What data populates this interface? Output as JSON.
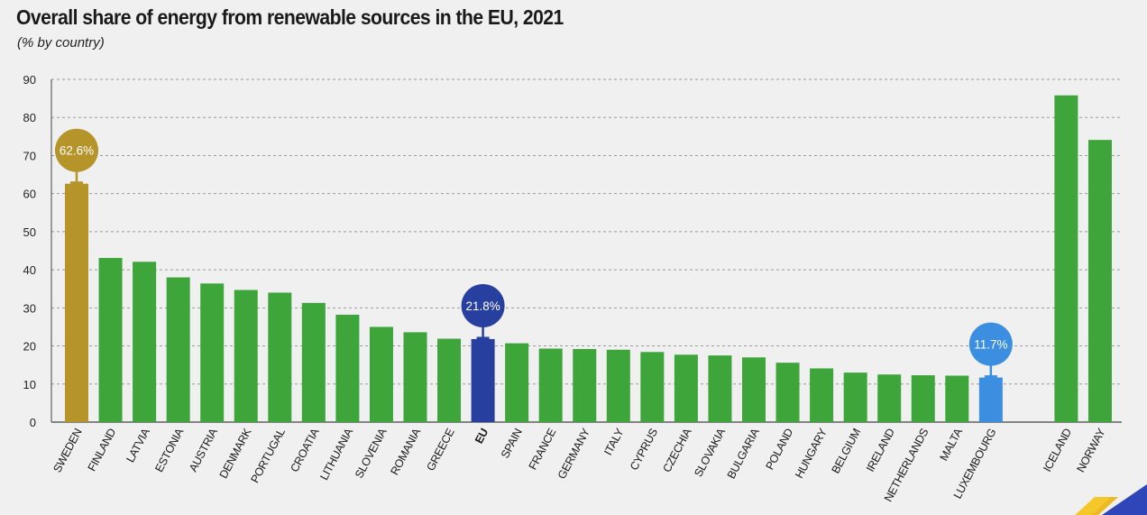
{
  "chart_data": {
    "type": "bar",
    "title": "Overall share of energy from renewable sources in the EU, 2021",
    "subtitle": "(% by country)",
    "ylim": [
      0,
      90
    ],
    "yticks": [
      "0",
      "10",
      "20",
      "30",
      "40",
      "50",
      "60",
      "70",
      "80",
      "90"
    ],
    "grid": true,
    "categories": [
      "SWEDEN",
      "FINLAND",
      "LATVIA",
      "ESTONIA",
      "AUSTRIA",
      "DENMARK",
      "PORTUGAL",
      "CROATIA",
      "LITHUANIA",
      "SLOVENIA",
      "ROMANIA",
      "GREECE",
      "EU",
      "SPAIN",
      "FRANCE",
      "GERMANY",
      "ITALY",
      "CYPRUS",
      "CZECHIA",
      "SLOVAKIA",
      "BULGARIA",
      "POLAND",
      "HUNGARY",
      "BELGIUM",
      "IRELAND",
      "NETHERLANDS",
      "MALTA",
      "LUXEMBOURG",
      "ICELAND",
      "NORWAY"
    ],
    "values": [
      62.6,
      43.1,
      42.1,
      38.0,
      36.4,
      34.7,
      34.0,
      31.3,
      28.2,
      25.0,
      23.6,
      21.9,
      21.8,
      20.7,
      19.3,
      19.2,
      19.0,
      18.4,
      17.7,
      17.5,
      17.0,
      15.6,
      14.1,
      13.0,
      12.5,
      12.3,
      12.2,
      11.7,
      85.8,
      74.1
    ],
    "highlights": [
      {
        "category": "SWEDEN",
        "label": "62.6%",
        "color": "#b5942a"
      },
      {
        "category": "EU",
        "label": "21.8%",
        "color": "#273f9e"
      },
      {
        "category": "LUXEMBOURG",
        "label": "11.7%",
        "color": "#3b8ee0"
      }
    ],
    "colors": {
      "default": "#3ea53b",
      "axis": "#444444",
      "grid": "#9a9a9a"
    }
  }
}
